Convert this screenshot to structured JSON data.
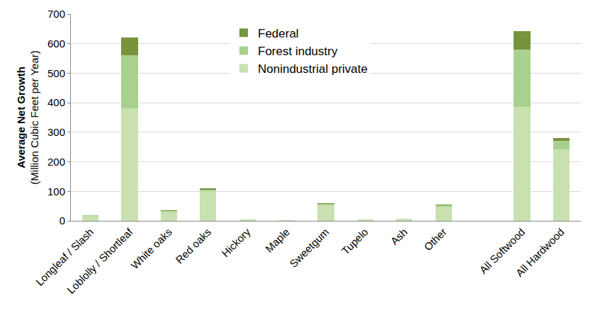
{
  "chart_data": {
    "type": "bar",
    "stacked": true,
    "y_label": "Average Net Growth\n(Million Cubic Feet per Year)",
    "categories": [
      "Longleaf / Slash",
      "Loblolly / Shortleaf",
      "White oaks",
      "Red oaks",
      "Hickory",
      "Maple",
      "Sweetgum",
      "Tupelo",
      "Ash",
      "Other",
      null,
      "All Softwood",
      "All Hardwood"
    ],
    "series": [
      {
        "name": "Nonindustrial private",
        "color": "#c9e0b0",
        "values": [
          16,
          382,
          30,
          100,
          5,
          2,
          52,
          4,
          7,
          47,
          null,
          385,
          242
        ]
      },
      {
        "name": "Forest industry",
        "color": "#a9d18e",
        "values": [
          3,
          180,
          3,
          6,
          1,
          1,
          6,
          1,
          1,
          5,
          null,
          195,
          30
        ]
      },
      {
        "name": "Federal",
        "color": "#77933c",
        "values": [
          1,
          60,
          2,
          4,
          0,
          0,
          2,
          0,
          0,
          3,
          null,
          62,
          8
        ]
      }
    ],
    "ylim": [
      0,
      700
    ],
    "yticks": [
      0,
      100,
      200,
      300,
      400,
      500,
      600,
      700
    ],
    "grid": true,
    "legend": "top"
  }
}
